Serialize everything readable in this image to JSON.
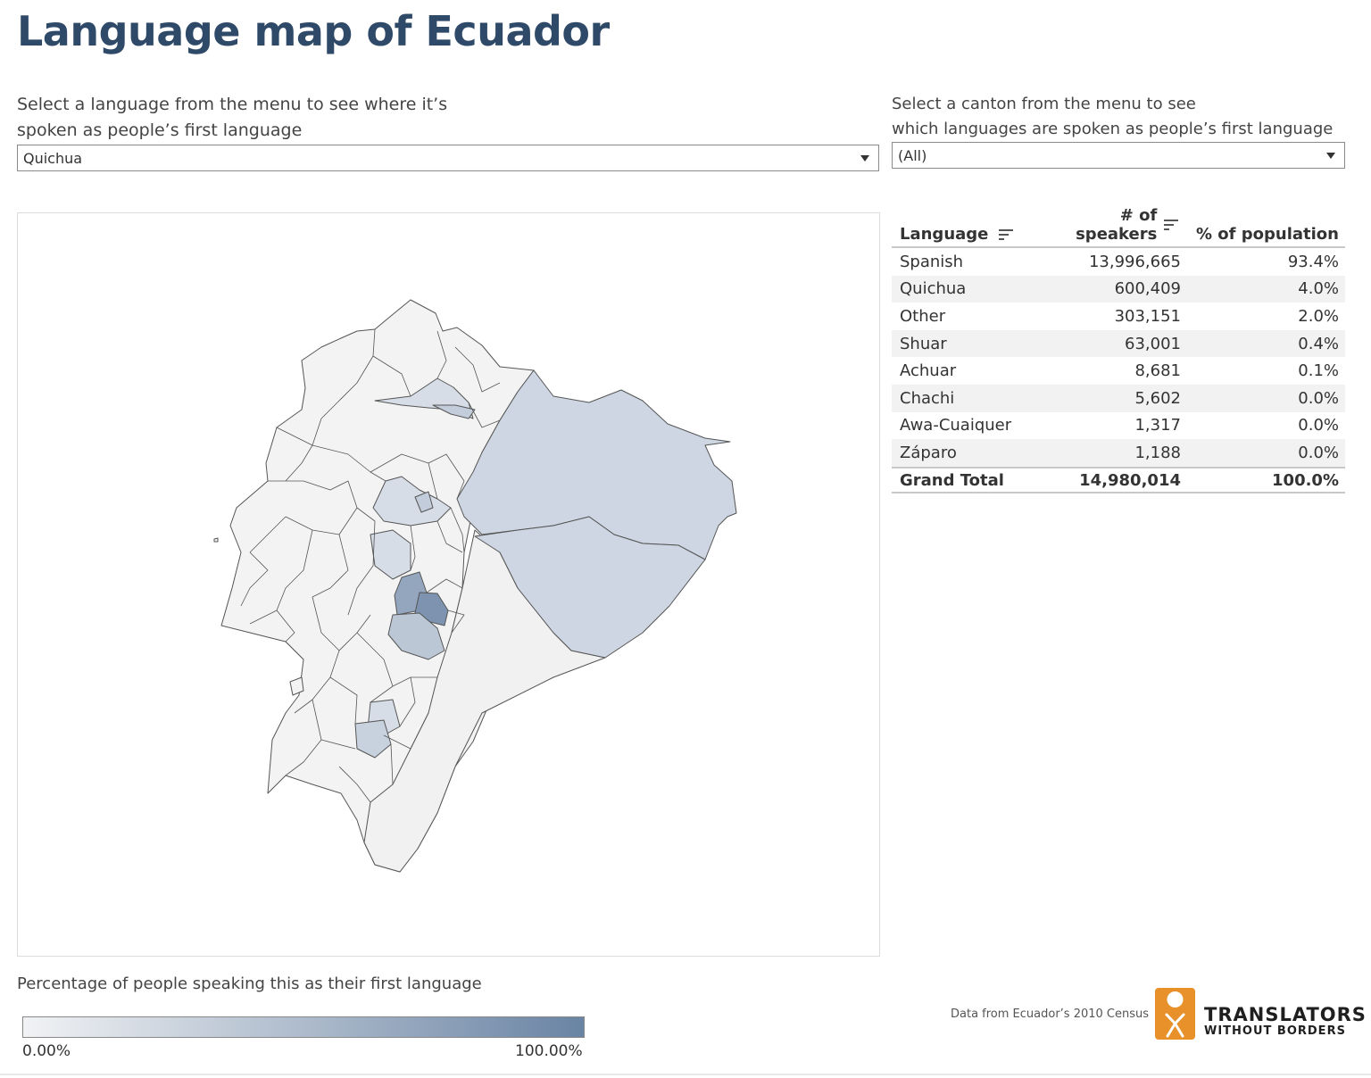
{
  "title": "Language map of Ecuador",
  "language_filter": {
    "label_line1": "Select a language from the menu to see where it’s",
    "label_line2": "spoken as people’s first language",
    "selected": "Quichua"
  },
  "canton_filter": {
    "label_line1": "Select a canton from the menu to see",
    "label_line2": "which languages are spoken as people’s first language",
    "selected": "(All)"
  },
  "table": {
    "headers": {
      "language": "Language",
      "speakers": "# of speakers",
      "percent": "% of population"
    },
    "rows": [
      {
        "language": "Spanish",
        "speakers": "13,996,665",
        "percent": "93.4%"
      },
      {
        "language": "Quichua",
        "speakers": "600,409",
        "percent": "4.0%"
      },
      {
        "language": "Other",
        "speakers": "303,151",
        "percent": "2.0%"
      },
      {
        "language": "Shuar",
        "speakers": "63,001",
        "percent": "0.4%"
      },
      {
        "language": "Achuar",
        "speakers": "8,681",
        "percent": "0.1%"
      },
      {
        "language": "Chachi",
        "speakers": "5,602",
        "percent": "0.0%"
      },
      {
        "language": "Awa-Cuaiquer",
        "speakers": "1,317",
        "percent": "0.0%"
      },
      {
        "language": "Záparo",
        "speakers": "1,188",
        "percent": "0.0%"
      }
    ],
    "total": {
      "language": "Grand Total",
      "speakers": "14,980,014",
      "percent": "100.0%"
    }
  },
  "legend": {
    "title": "Percentage of people speaking this as their first language",
    "min_label": "0.00%",
    "max_label": "100.00%",
    "color_low": "#f1f2f4",
    "color_high": "#6a84a4"
  },
  "source_note": "Data from Ecuador’s 2010 Census",
  "logo": {
    "line1": "TRANSLATORS",
    "line2": "WITHOUT BORDERS"
  },
  "colors": {
    "title": "#2f4a68",
    "map_default": "#f3f3f3",
    "map_border": "#555555"
  }
}
